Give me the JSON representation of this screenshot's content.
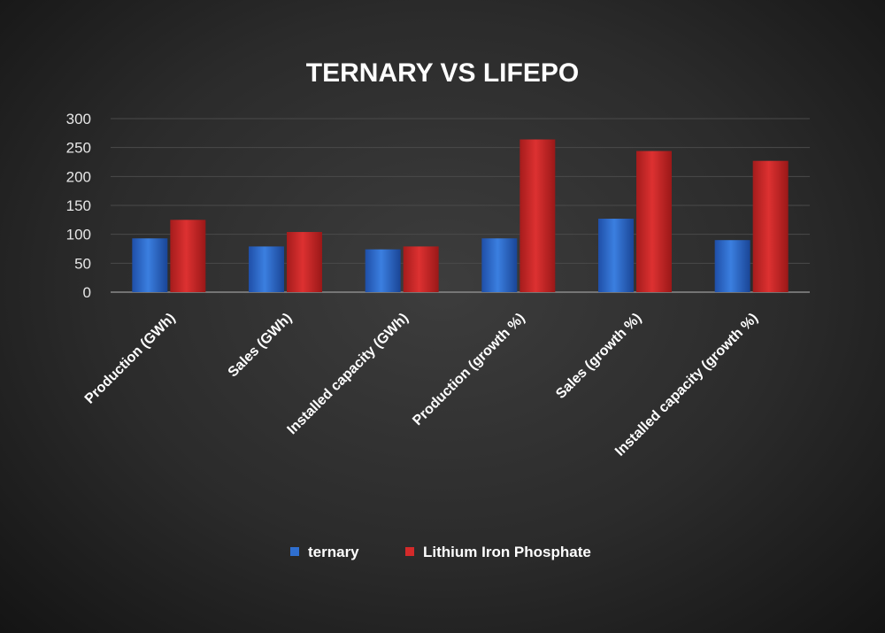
{
  "chart_data": {
    "type": "bar",
    "title": "TERNARY VS LIFEPO",
    "xlabel": "",
    "ylabel": "",
    "categories": [
      "Production (GWh)",
      "Sales (GWh)",
      "Installed capacity (GWh)",
      "Production (growth %)",
      "Sales (growth %)",
      "Installed capacity (growth %)"
    ],
    "series": [
      {
        "name": "ternary",
        "color": "#2f6fd0",
        "values": [
          93,
          79,
          74,
          93,
          127,
          90
        ]
      },
      {
        "name": "Lithium Iron Phosphate",
        "color": "#d42a2a",
        "values": [
          125,
          104,
          79,
          264,
          244,
          227
        ]
      }
    ],
    "ylim": [
      0,
      300
    ],
    "yticks": [
      0,
      50,
      100,
      150,
      200,
      250,
      300
    ],
    "grid": true,
    "legend_position": "bottom"
  }
}
